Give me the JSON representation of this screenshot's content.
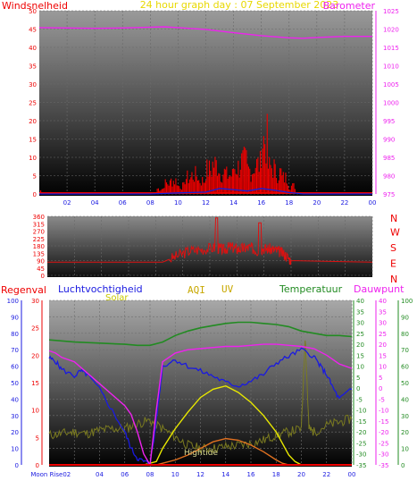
{
  "title": "24 hour graph day : 07 September 2023",
  "colors": {
    "wind": "#ee0000",
    "gust": "#ee0000",
    "wind_avg": "#1020e0",
    "barometer": "#ee22ee",
    "direction": "#dd1111",
    "humidity": "#1a1ae0",
    "temperature": "#228b22",
    "dewpoint": "#ee22ee",
    "solar": "#e8e800",
    "uv": "#e07020",
    "aqi": "#7a7a20",
    "rain": "#ee0000",
    "title": "#e8d800",
    "aqi_label": "#c8a800",
    "uv_label": "#c8a800"
  },
  "chart_data": [
    {
      "type": "line",
      "name": "wind-barometer",
      "left_label": "Windsnelheid",
      "right_label": "Barometer",
      "x_ticks": [
        "02",
        "04",
        "06",
        "08",
        "10",
        "12",
        "14",
        "16",
        "18",
        "20",
        "22",
        "00"
      ],
      "y_left_ticks": [
        "0",
        "5",
        "10",
        "15",
        "20",
        "25",
        "30",
        "35",
        "40",
        "45",
        "50"
      ],
      "y_left_range": [
        0,
        50
      ],
      "y_right_ticks": [
        "975",
        "980",
        "985",
        "990",
        "995",
        "1000",
        "1005",
        "1010",
        "1015",
        "1020",
        "1025"
      ],
      "y_right_range": [
        975,
        1025
      ],
      "barometer": {
        "x": [
          0,
          2,
          4,
          6,
          8,
          9,
          10,
          12,
          14,
          16,
          18,
          19,
          20,
          22,
          24
        ],
        "y": [
          1020.4,
          1020.3,
          1020.2,
          1020.3,
          1020.5,
          1020.6,
          1020.4,
          1019.9,
          1019.0,
          1018.2,
          1017.6,
          1017.5,
          1017.7,
          1018.0,
          1018.0
        ]
      },
      "wind_gusts": {
        "x": [
          0.1,
          8.5,
          9.0,
          9.5,
          10.0,
          10.5,
          11.0,
          11.5,
          12.0,
          12.5,
          13.0,
          13.5,
          14.0,
          14.5,
          15.0,
          15.5,
          16.0,
          16.5,
          17.0,
          17.5,
          18.0
        ],
        "y": [
          1,
          2,
          4,
          5,
          3,
          6,
          7,
          5,
          9,
          11,
          8,
          7,
          10,
          12,
          9,
          11,
          20,
          10,
          8,
          6,
          3
        ]
      },
      "wind_avg": {
        "x": [
          0,
          8,
          10,
          12,
          13,
          14,
          15,
          16,
          17,
          18,
          19,
          24
        ],
        "y": [
          0,
          0,
          0.3,
          0.5,
          1.5,
          1.2,
          0.8,
          1.5,
          1.0,
          0.4,
          0,
          0
        ]
      }
    },
    {
      "type": "line",
      "name": "wind-direction",
      "right_label": "N W S E N",
      "right_letters": [
        "N",
        "W",
        "S",
        "E",
        "N"
      ],
      "y_left_ticks": [
        "0",
        "90",
        "180",
        "270",
        "360"
      ],
      "y_left_ticks_minor": [
        "45",
        "135",
        "225",
        "315"
      ],
      "y_range": [
        0,
        360
      ],
      "direction": {
        "x": [
          0,
          7,
          8.5,
          9.5,
          10.5,
          11.5,
          12.5,
          13.0,
          13.5,
          14.0,
          14.5,
          15.0,
          15.5,
          16.0,
          16.5,
          17.0,
          17.5,
          18.0,
          24
        ],
        "y": [
          80,
          80,
          80,
          115,
          150,
          160,
          170,
          155,
          175,
          160,
          165,
          170,
          150,
          165,
          160,
          150,
          130,
          90,
          80
        ]
      }
    },
    {
      "type": "line",
      "name": "weather-multi",
      "labels": {
        "rain": "Regenval",
        "humidity": "Luchtvochtigheid",
        "solar": "Solar",
        "aqi": "AQI",
        "uv": "UV",
        "temperature": "Temperatuur",
        "dewpoint": "Dauwpunt"
      },
      "x_ticks": [
        "Moon Rise02",
        "04",
        "06",
        "08",
        "10",
        "12",
        "14",
        "16",
        "18",
        "20",
        "22",
        "00"
      ],
      "annotation_hightide": "Hightide",
      "axis_rain_ticks": [
        "0",
        "10",
        "20",
        "30",
        "40",
        "50",
        "60",
        "70",
        "80",
        "90",
        "100"
      ],
      "axis_humidity_ticks": [
        "0",
        "5",
        "10",
        "15",
        "20",
        "25",
        "30"
      ],
      "axis_temperature_ticks": [
        "-35",
        "-30",
        "-25",
        "-20",
        "-15",
        "-10",
        "-5",
        "0",
        "5",
        "10",
        "15",
        "20",
        "25",
        "30",
        "35",
        "40"
      ],
      "axis_dewpoint_ticks": [
        "-35",
        "-30",
        "-25",
        "-20",
        "-15",
        "-10",
        "-5",
        "0",
        "5",
        "10",
        "15",
        "20",
        "25",
        "30",
        "35",
        "40"
      ],
      "axis_right_outer_ticks": [
        "0",
        "10",
        "20",
        "30",
        "40",
        "50",
        "60",
        "70",
        "80",
        "90",
        "100"
      ],
      "temperature": {
        "x": [
          0,
          2,
          4,
          6,
          7,
          8,
          9,
          10,
          11,
          12,
          13,
          14,
          15,
          16,
          17,
          18,
          19,
          20,
          21,
          22,
          23,
          24
        ],
        "y": [
          22,
          21,
          20.5,
          20,
          19.5,
          19.5,
          21,
          24,
          26,
          27.5,
          28.5,
          29.5,
          30,
          30,
          29.5,
          29,
          28,
          26,
          25,
          24,
          24,
          23.5
        ]
      },
      "dewpoint": {
        "x": [
          0,
          0.5,
          1,
          2,
          3,
          4,
          5,
          6,
          6.5,
          7,
          7.5,
          8,
          8.5,
          9,
          10,
          11,
          12,
          13,
          14,
          15,
          16,
          17,
          18,
          19,
          20,
          21,
          22,
          23,
          24
        ],
        "y": [
          17,
          16,
          14,
          12,
          7,
          2,
          -3,
          -8,
          -12,
          -20,
          -30,
          -35,
          -10,
          12,
          16,
          17.5,
          18,
          18.5,
          19,
          19,
          19.5,
          20,
          20,
          19.5,
          19,
          18,
          15,
          11,
          9
        ]
      },
      "humidity_pct": {
        "x": [
          0,
          0.5,
          1,
          2,
          2.5,
          3,
          4,
          5,
          6,
          6.5,
          7,
          7.5,
          8,
          8.3,
          8.7,
          9,
          10,
          11,
          12,
          13,
          14,
          15,
          16,
          17,
          18,
          19,
          20,
          21,
          21.5,
          22,
          22.5,
          23,
          24
        ],
        "y": [
          65,
          63,
          58,
          54,
          57,
          55,
          46,
          33,
          20,
          10,
          4,
          2,
          1,
          15,
          40,
          60,
          64,
          60,
          57,
          54,
          50,
          48,
          51,
          55,
          62,
          66,
          70,
          66,
          60,
          55,
          47,
          40,
          46
        ]
      },
      "solar_pct": {
        "x": [
          0,
          7.5,
          8.5,
          9,
          10,
          11,
          12,
          13,
          14,
          15,
          16,
          17,
          18,
          19,
          19.5,
          20,
          24
        ],
        "y": [
          0,
          0,
          2,
          10,
          22,
          32,
          41,
          46,
          48,
          44,
          38,
          30,
          20,
          6,
          2,
          0,
          0
        ]
      },
      "uv_pct": {
        "x": [
          0,
          8.5,
          9,
          10,
          11,
          12,
          13,
          14,
          15,
          16,
          17,
          18,
          18.5,
          19,
          24
        ],
        "y": [
          0,
          0,
          1,
          3,
          6,
          10,
          14,
          16,
          15,
          12,
          8,
          3,
          1,
          0,
          0
        ]
      },
      "aqi_pct": {
        "x": [
          0,
          1,
          2,
          3,
          4,
          5,
          6,
          7,
          8,
          9,
          10,
          11,
          12,
          13,
          14,
          15,
          16,
          17,
          18,
          19,
          20,
          20.3,
          20.6,
          21,
          22,
          23,
          24
        ],
        "y": [
          18,
          19,
          20,
          19,
          21,
          22,
          22,
          25,
          27,
          22,
          17,
          12,
          10,
          10,
          11,
          12,
          13,
          15,
          18,
          20,
          22,
          78,
          22,
          20,
          24,
          26,
          28
        ]
      },
      "rain_pct": {
        "x": [
          0,
          24
        ],
        "y": [
          0,
          0
        ]
      }
    }
  ]
}
